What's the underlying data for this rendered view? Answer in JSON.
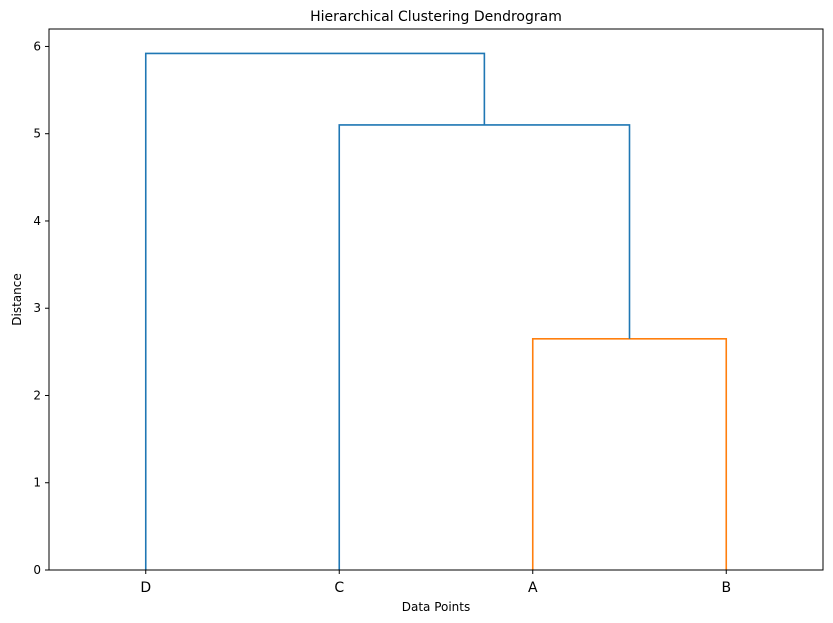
{
  "chart_data": {
    "type": "dendrogram",
    "title": "Hierarchical Clustering Dendrogram",
    "xlabel": "Data Points",
    "ylabel": "Distance",
    "leaves": [
      "D",
      "C",
      "A",
      "B"
    ],
    "ylim": [
      0,
      6.2
    ],
    "yticks": [
      0,
      1,
      2,
      3,
      4,
      5,
      6
    ],
    "grid": false,
    "merges": [
      {
        "left": "A",
        "right": "B",
        "distance": 2.65,
        "color": "#ff7f0e"
      },
      {
        "left": "C",
        "right": "A+B",
        "distance": 5.1,
        "color": "#1f77b4"
      },
      {
        "left": "D",
        "right": "C+A+B",
        "distance": 5.92,
        "color": "#1f77b4"
      }
    ]
  }
}
